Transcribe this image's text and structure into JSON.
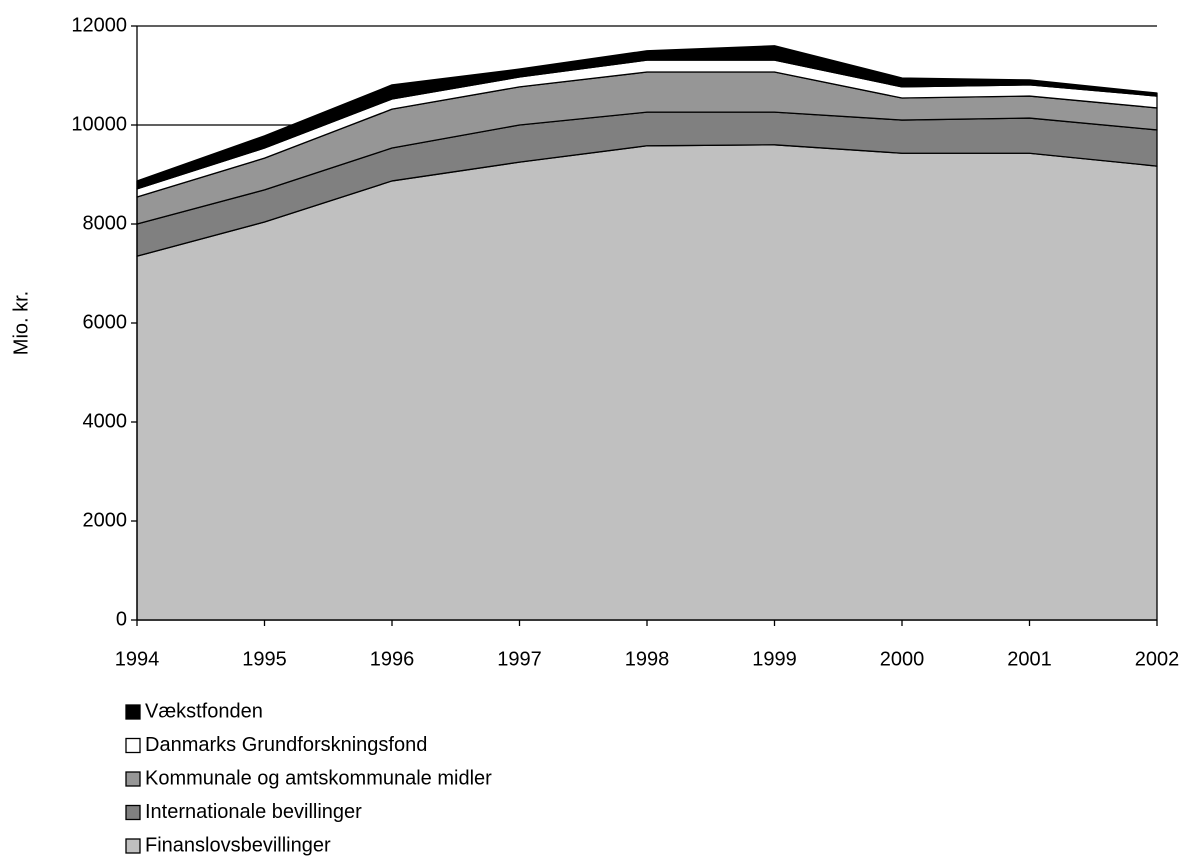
{
  "chart_data": {
    "type": "stacked_area",
    "y_label": "Mio. kr.",
    "x": [
      1994,
      1995,
      1996,
      1997,
      1998,
      1999,
      2000,
      2001,
      2002
    ],
    "xlim": [
      1994,
      2002
    ],
    "xticks": [
      1994,
      1995,
      1996,
      1997,
      1998,
      1999,
      2000,
      2001,
      2002
    ],
    "ylim": [
      0,
      12000
    ],
    "yticks": [
      0,
      2000,
      4000,
      6000,
      8000,
      10000,
      12000
    ],
    "grid": true,
    "legend": "bottom",
    "series": [
      {
        "name": "Vækstfonden",
        "color": "#000000",
        "values": [
          160,
          245,
          285,
          160,
          190,
          290,
          180,
          100,
          60
        ]
      },
      {
        "name": "Danmarks Grundforskningsfond",
        "color": "#ffffff",
        "values": [
          165,
          205,
          205,
          200,
          240,
          240,
          225,
          225,
          240
        ]
      },
      {
        "name": "Kommunale og amtskommunale midler",
        "color": "#969696",
        "values": [
          545,
          640,
          785,
          770,
          810,
          810,
          445,
          445,
          445
        ]
      },
      {
        "name": "Internationale bevillinger",
        "color": "#808080",
        "values": [
          650,
          650,
          665,
          750,
          680,
          660,
          670,
          710,
          730
        ]
      },
      {
        "name": "Finanslovsbevillinger",
        "color": "#c0c0c0",
        "values": [
          7350,
          8040,
          8870,
          9250,
          9580,
          9600,
          9430,
          9430,
          9170
        ]
      }
    ]
  }
}
